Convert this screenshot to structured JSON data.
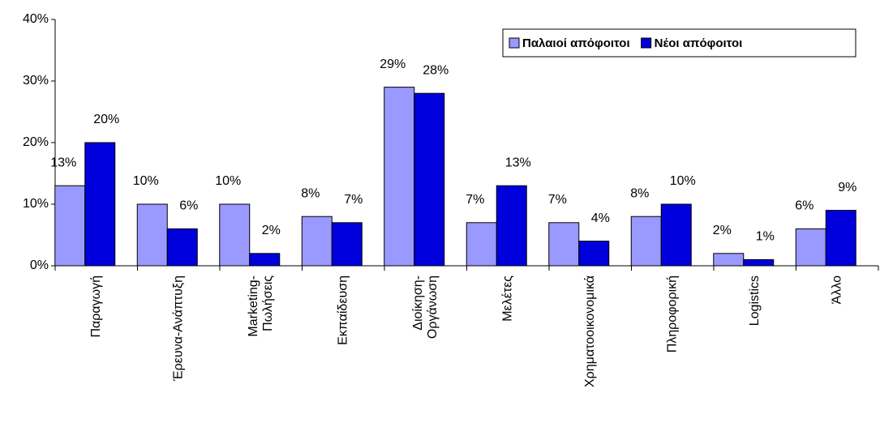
{
  "chart_data": {
    "type": "bar",
    "categories": [
      [
        "Παραγωγή"
      ],
      [
        "Έρευνα-Ανάπτυξη"
      ],
      [
        "Marketing-",
        "Πωλήσεις"
      ],
      [
        "Εκπαίδευση"
      ],
      [
        "Διοίκηση-",
        "Οργάνωση"
      ],
      [
        "Μελέτες"
      ],
      [
        "Χρηματοοικονομικά"
      ],
      [
        "Πληροφορική"
      ],
      [
        "Logistics"
      ],
      [
        "Άλλο"
      ]
    ],
    "series": [
      {
        "name": "Παλαιοί απόφοιτοι",
        "color": "#9999ff",
        "values": [
          13,
          10,
          10,
          8,
          29,
          7,
          7,
          8,
          2,
          6
        ],
        "value_labels": [
          "13%",
          "10%",
          "10%",
          "8%",
          "29%",
          "7%",
          "7%",
          "8%",
          "2%",
          "6%"
        ]
      },
      {
        "name": "Νέοι απόφοιτοι",
        "color": "#0000dd",
        "values": [
          20,
          6,
          2,
          7,
          28,
          13,
          4,
          10,
          1,
          9
        ],
        "value_labels": [
          "20%",
          "6%",
          "2%",
          "7%",
          "28%",
          "13%",
          "4%",
          "10%",
          "1%",
          "9%"
        ]
      }
    ],
    "ylim": [
      0,
      40
    ],
    "yticks": [
      {
        "value": 0,
        "label": "0%"
      },
      {
        "value": 10,
        "label": "10%"
      },
      {
        "value": 20,
        "label": "20%"
      },
      {
        "value": 30,
        "label": "30%"
      },
      {
        "value": 40,
        "label": "40%"
      }
    ],
    "grid": false,
    "legend": "top-right"
  }
}
